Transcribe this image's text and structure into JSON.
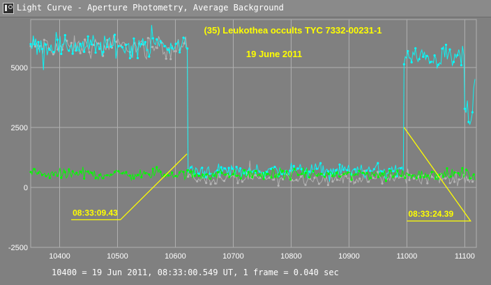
{
  "window": {
    "title": "Light Curve - Aperture Photometry, Average Background",
    "icon": "light-curve-app-icon"
  },
  "footer": {
    "text": "10400 = 19 Jun 2011, 08:33:00.549 UT, 1 frame = 0.040 sec"
  },
  "colors": {
    "background": "#808080",
    "grid": "#b0b0b0",
    "target": "#00ffff",
    "comparison": "#00ff00",
    "background_series": "#b4b4b4",
    "annotation": "#ffff00"
  },
  "chart_data": {
    "type": "scatter",
    "title": "(35) Leukothea occults TYC 7332-00231-1",
    "subtitle": "19 June 2011",
    "xlabel": "",
    "ylabel": "",
    "xlim": [
      10350,
      11120
    ],
    "ylim": [
      -2500,
      7000
    ],
    "x_ticks": [
      10400,
      10500,
      10600,
      10700,
      10800,
      10900,
      11000,
      11100
    ],
    "y_ticks": [
      -2500,
      0,
      2500,
      5000
    ],
    "grid": true,
    "connected": true,
    "series": [
      {
        "name": "",
        "color": "#00ffff",
        "segments": [
          {
            "x_start": 10350,
            "x_end": 10622,
            "mean": 5900,
            "spread": 700
          },
          {
            "x_start": 10622,
            "x_end": 10995,
            "mean": 700,
            "spread": 450
          },
          {
            "x_start": 10995,
            "x_end": 11100,
            "mean": 5400,
            "spread": 650
          },
          {
            "x_start": 11100,
            "x_end": 11118,
            "mean": 3200,
            "spread": 1400
          }
        ]
      },
      {
        "name": "",
        "color": "#b4b4b4",
        "segments": [
          {
            "x_start": 10350,
            "x_end": 10622,
            "mean": 5850,
            "spread": 650
          },
          {
            "x_start": 10622,
            "x_end": 11118,
            "mean": 380,
            "spread": 380
          }
        ]
      },
      {
        "name": "",
        "color": "#00ff00",
        "segments": [
          {
            "x_start": 10350,
            "x_end": 11118,
            "mean": 550,
            "spread": 330
          }
        ]
      }
    ],
    "annotations": [
      {
        "text": "08:33:09.43",
        "line": [
          [
            10620,
            1400
          ],
          [
            10505,
            -1350
          ],
          [
            10420,
            -1350
          ]
        ]
      },
      {
        "text": "08:33:24.39",
        "line": [
          [
            10995,
            2500
          ],
          [
            11110,
            -1400
          ],
          [
            11000,
            -1400
          ]
        ]
      }
    ]
  }
}
